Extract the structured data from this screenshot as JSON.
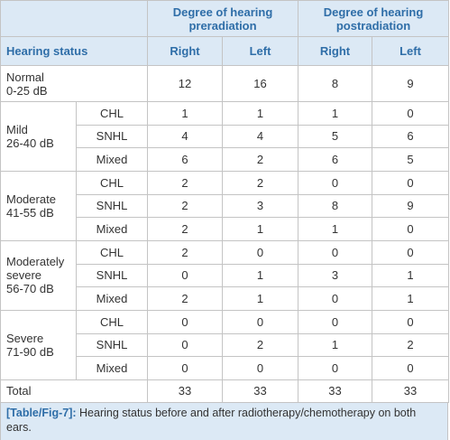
{
  "header": {
    "groups": [
      "Degree of hearing preradiation",
      "Degree of hearing postradiation"
    ],
    "hearing_status": "Hearing status",
    "subheaders": [
      "Right",
      "Left",
      "Right",
      "Left"
    ]
  },
  "groups": [
    {
      "label": [
        "Normal",
        "0-25 dB"
      ],
      "rows": [
        {
          "values": [
            12,
            16,
            8,
            9
          ]
        }
      ]
    },
    {
      "label": [
        "Mild",
        "26-40 dB"
      ],
      "rows": [
        {
          "type": "CHL",
          "values": [
            1,
            1,
            1,
            0
          ]
        },
        {
          "type": "SNHL",
          "values": [
            4,
            4,
            5,
            6
          ]
        },
        {
          "type": "Mixed",
          "values": [
            6,
            2,
            6,
            5
          ]
        }
      ]
    },
    {
      "label": [
        "Moderate",
        "41-55 dB"
      ],
      "rows": [
        {
          "type": "CHL",
          "values": [
            2,
            2,
            0,
            0
          ]
        },
        {
          "type": "SNHL",
          "values": [
            2,
            3,
            8,
            9
          ]
        },
        {
          "type": "Mixed",
          "values": [
            2,
            1,
            1,
            0
          ]
        }
      ]
    },
    {
      "label": [
        "Moderately",
        "severe",
        "56-70 dB"
      ],
      "rows": [
        {
          "type": "CHL",
          "values": [
            2,
            0,
            0,
            0
          ]
        },
        {
          "type": "SNHL",
          "values": [
            0,
            1,
            3,
            1
          ]
        },
        {
          "type": "Mixed",
          "values": [
            2,
            1,
            0,
            1
          ]
        }
      ]
    },
    {
      "label": [
        "Severe",
        "71-90 dB"
      ],
      "rows": [
        {
          "type": "CHL",
          "values": [
            0,
            0,
            0,
            0
          ]
        },
        {
          "type": "SNHL",
          "values": [
            0,
            2,
            1,
            2
          ]
        },
        {
          "type": "Mixed",
          "values": [
            0,
            0,
            0,
            0
          ]
        }
      ]
    }
  ],
  "total": {
    "label": "Total",
    "values": [
      33,
      33,
      33,
      33
    ]
  },
  "caption": {
    "label": "[Table/Fig-7]:",
    "text": "Hearing status before and after radiotherapy/chemotherapy on both ears."
  }
}
